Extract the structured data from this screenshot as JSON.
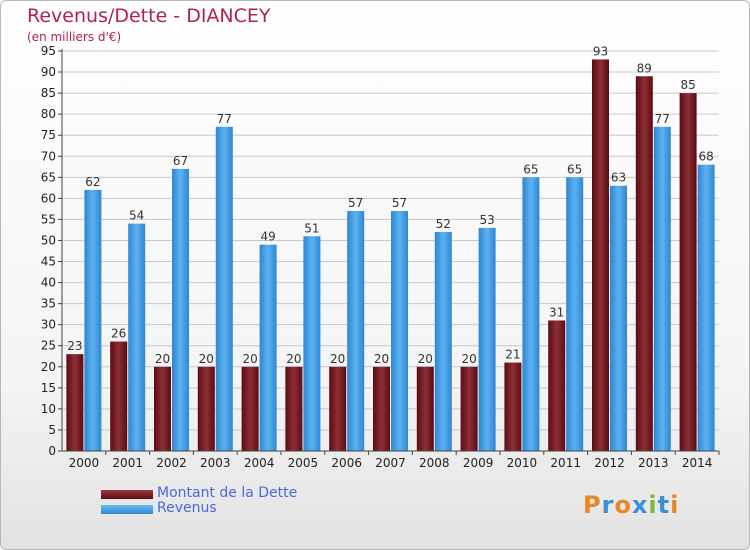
{
  "title": "Revenus/Dette - DIANCEY",
  "subtitle": "(en milliers d'€)",
  "logo_text": "Proxiti",
  "colors": {
    "dette": "#7a1f26",
    "revenus": "#4aa3e8",
    "title": "#b0224a",
    "legend_text": "#4a68d8"
  },
  "chart_data": {
    "type": "bar",
    "title": "Revenus/Dette - DIANCEY",
    "subtitle": "(en milliers d'€)",
    "xlabel": "",
    "ylabel": "",
    "ylim": [
      0,
      95
    ],
    "yticks": [
      0,
      5,
      10,
      15,
      20,
      25,
      30,
      35,
      40,
      45,
      50,
      55,
      60,
      65,
      70,
      75,
      80,
      85,
      90,
      95
    ],
    "grid": true,
    "legend_position": "bottom-left",
    "categories": [
      "2000",
      "2001",
      "2002",
      "2003",
      "2004",
      "2005",
      "2006",
      "2007",
      "2008",
      "2009",
      "2010",
      "2011",
      "2012",
      "2013",
      "2014"
    ],
    "series": [
      {
        "name": "Montant de la Dette",
        "color": "#7a1f26",
        "values": [
          23,
          26,
          20,
          20,
          20,
          20,
          20,
          20,
          20,
          20,
          21,
          31,
          93,
          89,
          85
        ]
      },
      {
        "name": "Revenus",
        "color": "#4aa3e8",
        "values": [
          62,
          54,
          67,
          77,
          49,
          51,
          57,
          57,
          52,
          53,
          65,
          65,
          63,
          77,
          68
        ]
      }
    ]
  }
}
